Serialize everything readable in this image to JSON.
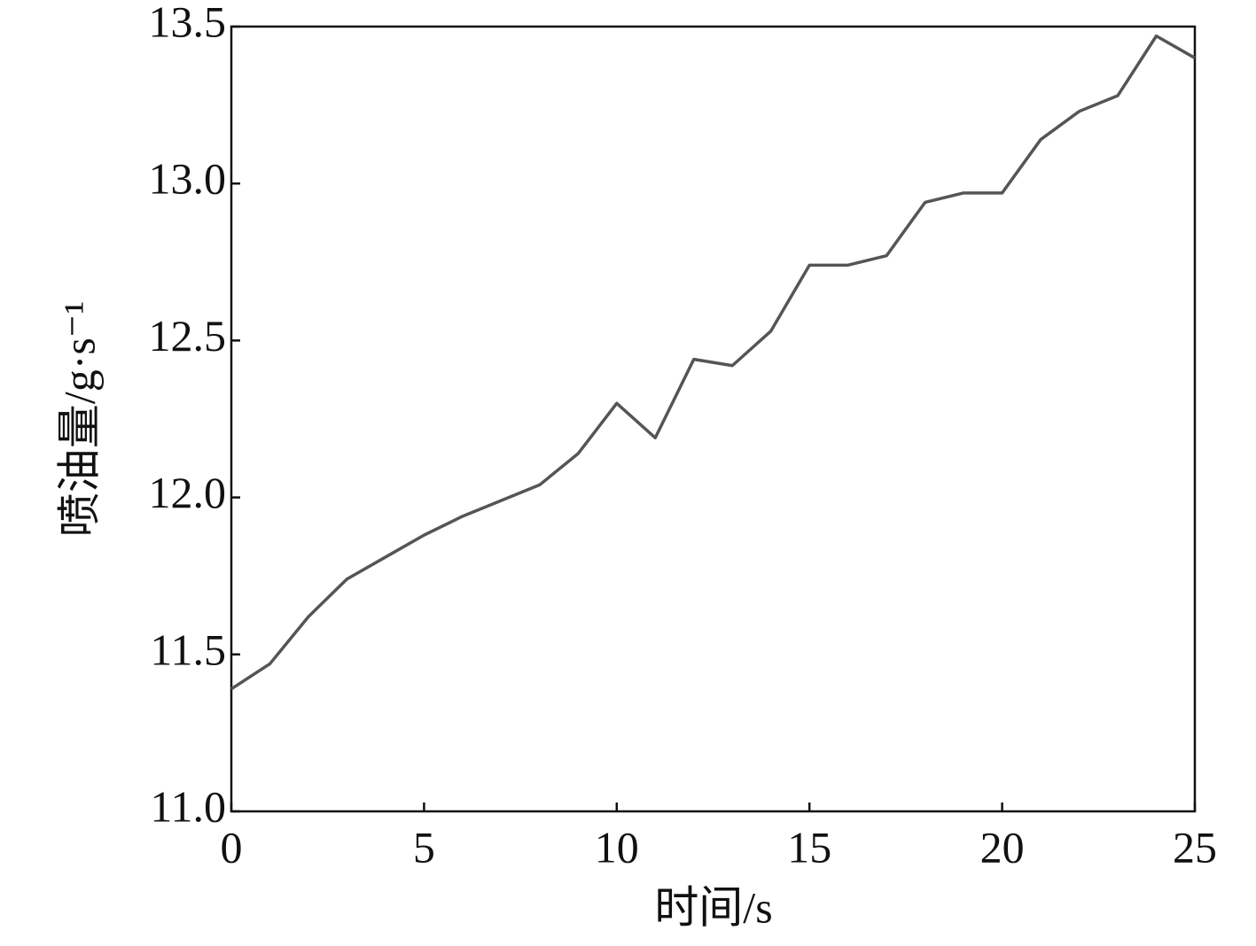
{
  "chart_data": {
    "type": "line",
    "xlabel": "时间/s",
    "ylabel": "喷油量/g·s⁻¹",
    "x": [
      0,
      1,
      2,
      3,
      4,
      5,
      6,
      7,
      8,
      9,
      10,
      11,
      12,
      13,
      14,
      15,
      16,
      17,
      18,
      19,
      20,
      21,
      22,
      23,
      24,
      25
    ],
    "values": [
      11.39,
      11.47,
      11.62,
      11.74,
      11.81,
      11.88,
      11.94,
      11.99,
      12.04,
      12.14,
      12.3,
      12.19,
      12.44,
      12.42,
      12.53,
      12.74,
      12.74,
      12.77,
      12.94,
      12.97,
      12.97,
      13.14,
      13.23,
      13.28,
      13.47,
      13.4
    ],
    "color": "#555555",
    "xlim": [
      0,
      25
    ],
    "xticks": [
      0,
      5,
      10,
      15,
      20,
      25
    ],
    "ylim": [
      11,
      13.5
    ],
    "yticks": [
      {
        "value": 11,
        "label": "11.0"
      },
      11.5,
      {
        "value": 12,
        "label": "12.0"
      },
      12.5,
      {
        "value": 13,
        "label": "13.0"
      },
      13.5
    ]
  }
}
